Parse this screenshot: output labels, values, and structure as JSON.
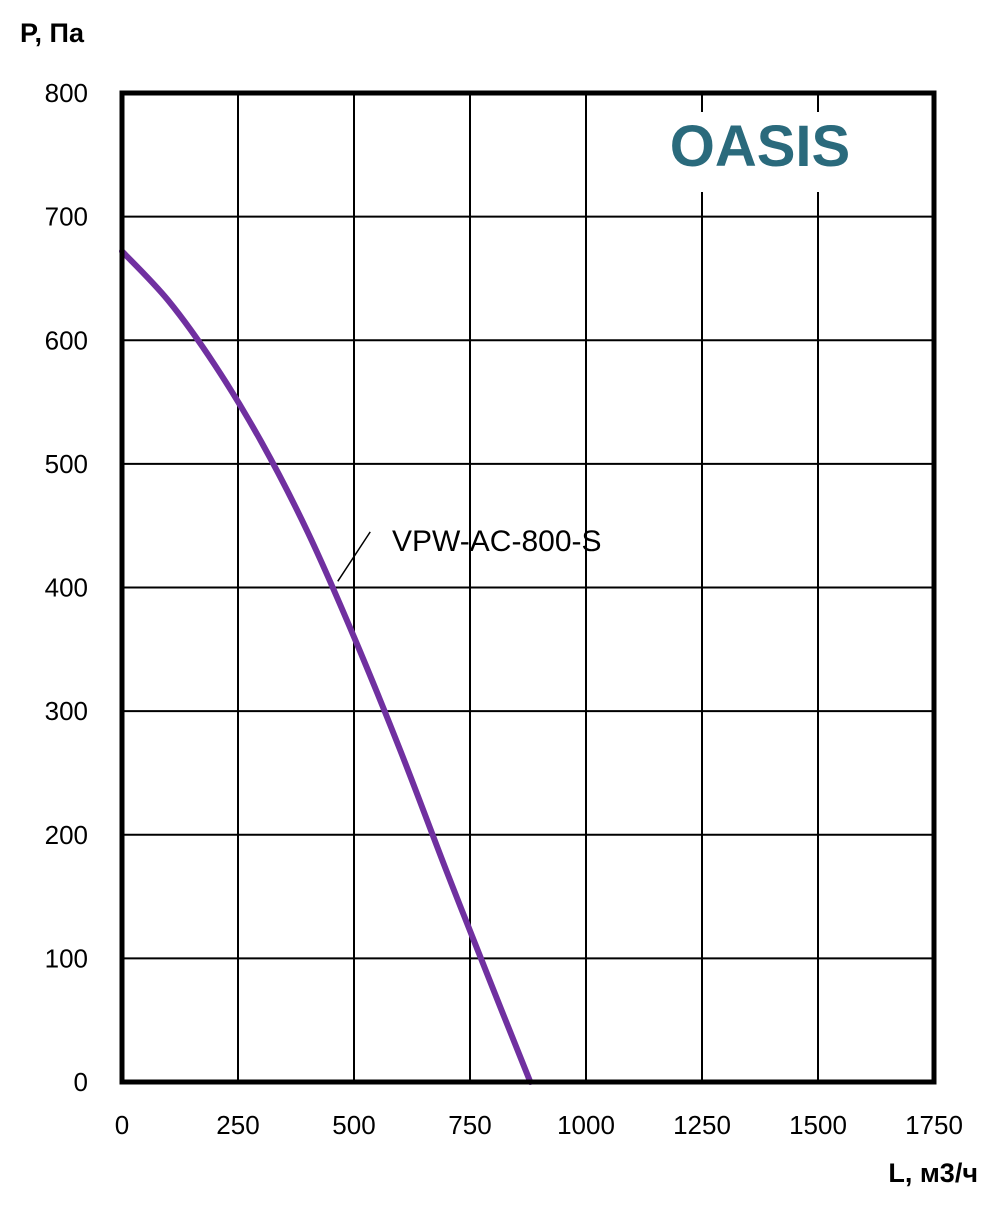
{
  "chart_data": {
    "type": "line",
    "ylabel": "P, Па",
    "xlabel": "L, м3/ч",
    "xlim": [
      0,
      1750
    ],
    "ylim": [
      0,
      800
    ],
    "xticks": [
      0,
      250,
      500,
      750,
      1000,
      1250,
      1500,
      1750
    ],
    "yticks": [
      0,
      100,
      200,
      300,
      400,
      500,
      600,
      700,
      800
    ],
    "grid": true,
    "brand_text": "OASIS",
    "brand_color": "#2a6a7c",
    "series": [
      {
        "name": "VPW-AC-800-S",
        "color": "#7030a0",
        "x": [
          0,
          100,
          200,
          300,
          400,
          500,
          600,
          700,
          800,
          880
        ],
        "y": [
          672,
          632,
          580,
          518,
          445,
          360,
          268,
          170,
          75,
          0
        ]
      }
    ]
  }
}
